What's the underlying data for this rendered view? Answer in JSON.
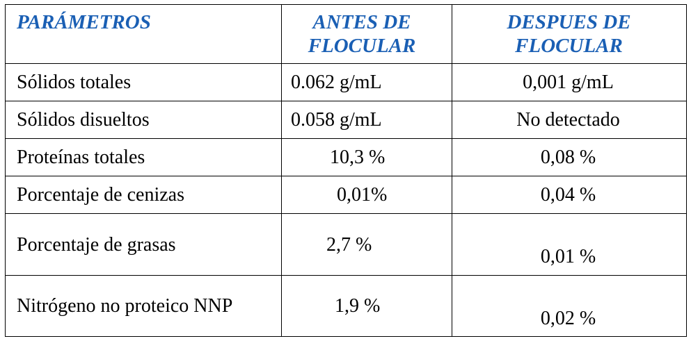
{
  "header": {
    "col1": "PARÁMETROS",
    "col2_line1": "ANTES DE",
    "col2_line2": "FLOCULAR",
    "col3_line1": "DESPUES DE",
    "col3_line2": "FLOCULAR",
    "color": "#1a5fb4"
  },
  "rows": [
    {
      "param": "Sólidos totales",
      "before": "0.062 g/mL",
      "after": "0,001 g/mL"
    },
    {
      "param": "Sólidos disueltos",
      "before": "0.058 g/mL",
      "after": "No detectado"
    },
    {
      "param": "Proteínas totales",
      "before": "10,3 %",
      "after": "0,08 %"
    },
    {
      "param": "Porcentaje de cenizas",
      "before": "0,01%",
      "after": "0,04 %"
    },
    {
      "param": "Porcentaje de grasas",
      "before": "2,7 %",
      "after": "0,01 %"
    },
    {
      "param": "Nitrógeno no proteico NNP",
      "before": "1,9 %",
      "after": "0,02 %"
    }
  ]
}
